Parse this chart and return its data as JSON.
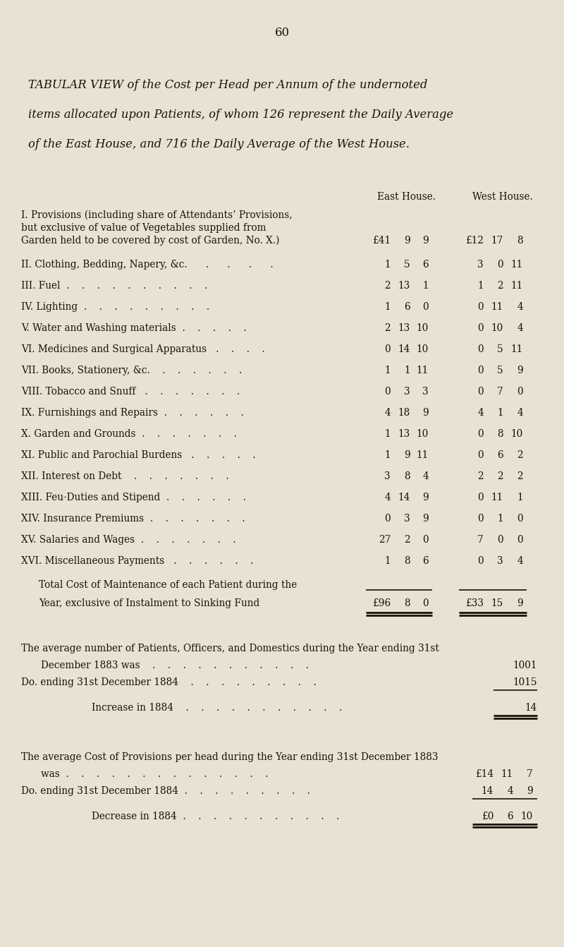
{
  "bg_color": "#e8e2d2",
  "text_color": "#1a1208",
  "page_number": "60",
  "title_lines": [
    "TABULAR VIEW of the Cost per Head per Annum of the undernoted",
    "items allocated upon Patients, of whom 126 represent the Daily Average",
    "of the East House, and 716 the Daily Average of the West House."
  ],
  "col_header_east": "East House.",
  "col_header_west": "West House.",
  "rows": [
    {
      "label1": "I. Provisions (including share of Attendants’ Provisions,",
      "label2": "but exclusive of value of Vegetables supplied from",
      "label3": "Garden held to be covered by cost of Garden, No. X.)",
      "east_pounds": "£41",
      "east_sh": "9",
      "east_d": "9",
      "west_pounds": "£12",
      "west_sh": "17",
      "west_d": "8",
      "multiline": true
    },
    {
      "label1": "II. Clothing, Bedding, Napery, &c.      .      .      .      .",
      "east_pounds": "1",
      "east_sh": "5",
      "east_d": "6",
      "west_pounds": "3",
      "west_sh": "0",
      "west_d": "11",
      "multiline": false
    },
    {
      "label1": "III. Fuel  .    .    .    .    .    .    .    .    .    .",
      "east_pounds": "2",
      "east_sh": "13",
      "east_d": "1",
      "west_pounds": "1",
      "west_sh": "2",
      "west_d": "11",
      "multiline": false
    },
    {
      "label1": "IV. Lighting  .    .    .    .    .    .    .    .    .",
      "east_pounds": "1",
      "east_sh": "6",
      "east_d": "0",
      "west_pounds": "0",
      "west_sh": "11",
      "west_d": "4",
      "multiline": false
    },
    {
      "label1": "V. Water and Washing materials  .    .    .    .    .",
      "east_pounds": "2",
      "east_sh": "13",
      "east_d": "10",
      "west_pounds": "0",
      "west_sh": "10",
      "west_d": "4",
      "multiline": false
    },
    {
      "label1": "VI. Medicines and Surgical Apparatus   .    .    .    .",
      "east_pounds": "0",
      "east_sh": "14",
      "east_d": "10",
      "west_pounds": "0",
      "west_sh": "5",
      "west_d": "11",
      "multiline": false
    },
    {
      "label1": "VII. Books, Stationery, &c.    .    .    .    .    .    .",
      "east_pounds": "1",
      "east_sh": "1",
      "east_d": "11",
      "west_pounds": "0",
      "west_sh": "5",
      "west_d": "9",
      "multiline": false
    },
    {
      "label1": "VIII. Tobacco and Snuff   .    .    .    .    .    .    .",
      "east_pounds": "0",
      "east_sh": "3",
      "east_d": "3",
      "west_pounds": "0",
      "west_sh": "7",
      "west_d": "0",
      "multiline": false
    },
    {
      "label1": "IX. Furnishings and Repairs  .    .    .    .    .    .",
      "east_pounds": "4",
      "east_sh": "18",
      "east_d": "9",
      "west_pounds": "4",
      "west_sh": "1",
      "west_d": "4",
      "multiline": false
    },
    {
      "label1": "X. Garden and Grounds  .    .    .    .    .    .    .",
      "east_pounds": "1",
      "east_sh": "13",
      "east_d": "10",
      "west_pounds": "0",
      "west_sh": "8",
      "west_d": "10",
      "multiline": false
    },
    {
      "label1": "XI. Public and Parochial Burdens   .    .    .    .    .",
      "east_pounds": "1",
      "east_sh": "9",
      "east_d": "11",
      "west_pounds": "0",
      "west_sh": "6",
      "west_d": "2",
      "multiline": false
    },
    {
      "label1": "XII. Interest on Debt    .    .    .    .    .    .    .",
      "east_pounds": "3",
      "east_sh": "8",
      "east_d": "4",
      "west_pounds": "2",
      "west_sh": "2",
      "west_d": "2",
      "multiline": false
    },
    {
      "label1": "XIII. Feu-Duties and Stipend  .    .    .    .    .    .",
      "east_pounds": "4",
      "east_sh": "14",
      "east_d": "9",
      "west_pounds": "0",
      "west_sh": "11",
      "west_d": "1",
      "multiline": false
    },
    {
      "label1": "XIV. Insurance Premiums  .    .    .    .    .    .    .",
      "east_pounds": "0",
      "east_sh": "3",
      "east_d": "9",
      "west_pounds": "0",
      "west_sh": "1",
      "west_d": "0",
      "multiline": false
    },
    {
      "label1": "XV. Salaries and Wages  .    .    .    .    .    .    .",
      "east_pounds": "27",
      "east_sh": "2",
      "east_d": "0",
      "west_pounds": "7",
      "west_sh": "0",
      "west_d": "0",
      "multiline": false
    },
    {
      "label1": "XVI. Miscellaneous Payments   .    .    .    .    .    .",
      "east_pounds": "1",
      "east_sh": "8",
      "east_d": "6",
      "west_pounds": "0",
      "west_sh": "3",
      "west_d": "4",
      "multiline": false
    }
  ],
  "total_label1": "Total Cost of Maintenance of each Patient during the",
  "total_label2": "Year, exclusive of Instalment to Sinking Fund",
  "total_east_pounds": "£96",
  "total_east_sh": "8",
  "total_east_d": "0",
  "total_west_pounds": "£33",
  "total_west_sh": "15",
  "total_west_d": "9",
  "sect1_line0": "The average number of Patients, Officers, and Domestics during the Year ending 31st",
  "sect1_line1_label": "December 1883 was    .    .    .    .    .    .    .    .    .    .    .",
  "sect1_line1_val": "1001",
  "sect1_line2_label": "Do. ending 31st December 1884    .    .    .    .    .    .    .    .    .",
  "sect1_line2_val": "1015",
  "sect1_line3_label": "Increase in 1884    .    .    .    .    .    .    .    .    .    .    .",
  "sect1_line3_val": "14",
  "sect2_line0": "The average Cost of Provisions per head during the Year ending 31st December 1883",
  "sect2_line1_label": "was  .    .    .    .    .    .    .    .    .    .    .    .    .    .",
  "sect2_line1_val_sym": "£14",
  "sect2_line1_val_sh": "11",
  "sect2_line1_val_d": "7",
  "sect2_line2_label": "Do. ending 31st December 1884  .    .    .    .    .    .    .    .    .",
  "sect2_line2_val_sh": "14",
  "sect2_line2_val_sh2": "4",
  "sect2_line2_val_d": "9",
  "sect2_line3_label": "Decrease in 1884  .    .    .    .    .    .    .    .    .    .    .",
  "sect2_line3_val_sym": "£0",
  "sect2_line3_val_sh": "6",
  "sect2_line3_val_d": "10"
}
